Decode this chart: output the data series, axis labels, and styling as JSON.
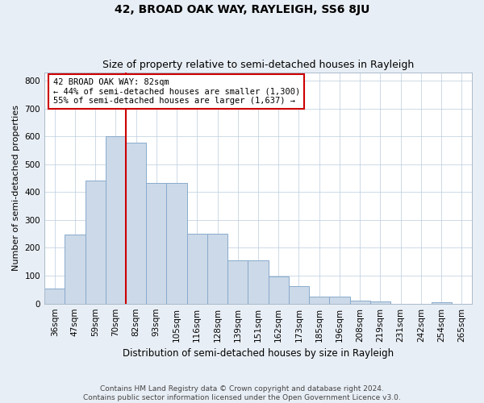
{
  "title": "42, BROAD OAK WAY, RAYLEIGH, SS6 8JU",
  "subtitle": "Size of property relative to semi-detached houses in Rayleigh",
  "xlabel": "Distribution of semi-detached houses by size in Rayleigh",
  "ylabel": "Number of semi-detached properties",
  "categories": [
    "36sqm",
    "47sqm",
    "59sqm",
    "70sqm",
    "82sqm",
    "93sqm",
    "105sqm",
    "116sqm",
    "128sqm",
    "139sqm",
    "151sqm",
    "162sqm",
    "173sqm",
    "185sqm",
    "196sqm",
    "208sqm",
    "219sqm",
    "231sqm",
    "242sqm",
    "254sqm",
    "265sqm"
  ],
  "values": [
    55,
    248,
    440,
    600,
    578,
    432,
    432,
    252,
    252,
    155,
    155,
    97,
    63,
    25,
    25,
    10,
    8,
    0,
    0,
    5,
    0
  ],
  "bar_color": "#ccd9e8",
  "bar_edge_color": "#88aacc",
  "property_line_index": 4,
  "annotation_text": "42 BROAD OAK WAY: 82sqm\n← 44% of semi-detached houses are smaller (1,300)\n55% of semi-detached houses are larger (1,637) →",
  "ylim": [
    0,
    830
  ],
  "yticks": [
    0,
    100,
    200,
    300,
    400,
    500,
    600,
    700,
    800
  ],
  "footer_line1": "Contains HM Land Registry data © Crown copyright and database right 2024.",
  "footer_line2": "Contains public sector information licensed under the Open Government Licence v3.0.",
  "background_color": "#e8eef5",
  "plot_background_color": "#ffffff",
  "grid_color": "#bbccdd",
  "title_fontsize": 10,
  "subtitle_fontsize": 9,
  "footer_fontsize": 6.5,
  "annotation_box_edge_color": "#cc0000",
  "vline_color": "#cc0000",
  "ylabel_fontsize": 8,
  "xlabel_fontsize": 8.5,
  "tick_fontsize": 7.5
}
